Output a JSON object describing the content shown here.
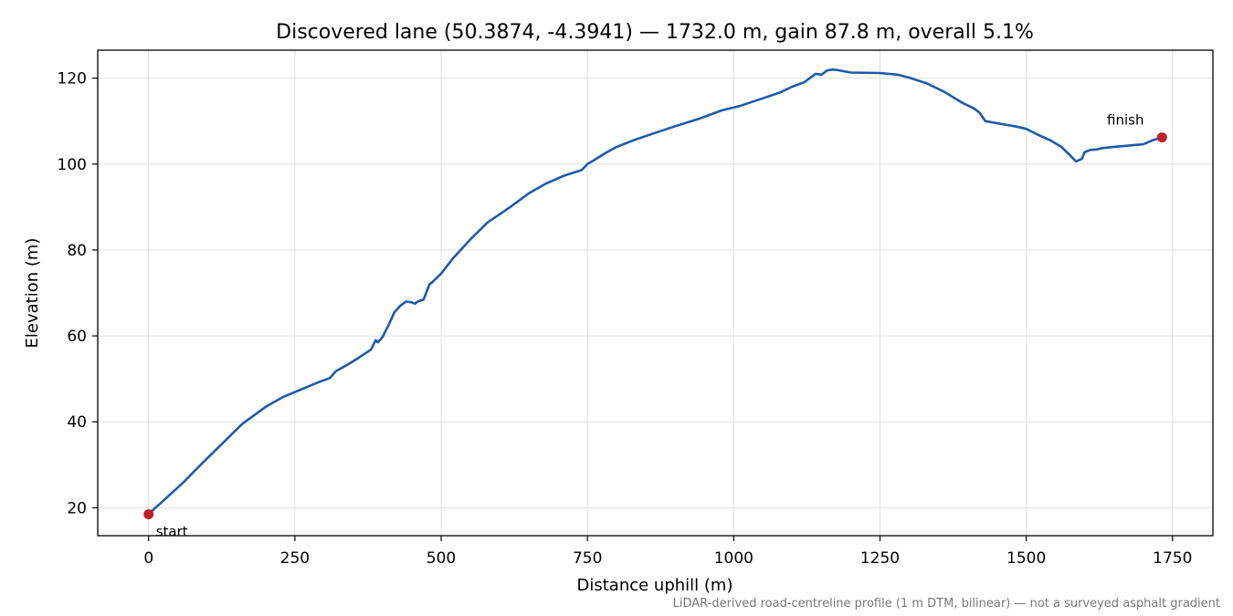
{
  "chart_data": {
    "type": "line",
    "title": "Discovered lane (50.3874, -4.3941) — 1732.0 m, gain 87.8 m, overall 5.1%",
    "xlabel": "Distance uphill (m)",
    "ylabel": "Elevation (m)",
    "footnote": "LiDAR-derived road-centreline profile (1 m DTM, bilinear) — not a surveyed asphalt gradient",
    "xlim": [
      -87,
      1819
    ],
    "ylim": [
      13.5,
      126.5
    ],
    "xticks": [
      0,
      250,
      500,
      750,
      1000,
      1250,
      1500,
      1750
    ],
    "yticks": [
      20,
      40,
      60,
      80,
      100,
      120
    ],
    "grid": true,
    "colors": {
      "line": "#1f5aa8",
      "marker": "#c41e2a",
      "grid": "#e0e0e0"
    },
    "series": [
      {
        "name": "",
        "x": [
          0,
          10,
          20,
          40,
          60,
          80,
          100,
          130,
          160,
          180,
          200,
          230,
          260,
          290,
          310,
          320,
          340,
          360,
          380,
          388,
          392,
          400,
          410,
          420,
          430,
          440,
          450,
          455,
          460,
          470,
          480,
          485,
          490,
          500,
          520,
          550,
          580,
          600,
          620,
          650,
          680,
          710,
          740,
          750,
          760,
          780,
          800,
          830,
          860,
          900,
          940,
          980,
          1010,
          1050,
          1080,
          1100,
          1120,
          1140,
          1150,
          1160,
          1170,
          1180,
          1200,
          1250,
          1280,
          1300,
          1330,
          1360,
          1390,
          1410,
          1420,
          1430,
          1450,
          1480,
          1500,
          1510,
          1520,
          1540,
          1560,
          1575,
          1585,
          1595,
          1600,
          1610,
          1620,
          1630,
          1650,
          1700,
          1715,
          1732
        ],
        "y": [
          18.5,
          19.8,
          21.0,
          23.5,
          26.0,
          28.8,
          31.5,
          35.5,
          39.5,
          41.5,
          43.5,
          45.8,
          47.5,
          49.2,
          50.2,
          51.8,
          53.3,
          55.0,
          56.8,
          59.0,
          58.5,
          59.8,
          62.5,
          65.5,
          67.0,
          68.0,
          67.8,
          67.5,
          68.0,
          68.5,
          72.0,
          72.5,
          73.2,
          74.5,
          78.0,
          82.5,
          86.5,
          88.3,
          90.2,
          93.2,
          95.5,
          97.3,
          98.6,
          100.0,
          100.8,
          102.5,
          104.0,
          105.6,
          107.0,
          108.8,
          110.5,
          112.5,
          113.5,
          115.3,
          116.7,
          118.0,
          119.0,
          121.0,
          120.8,
          121.8,
          122.0,
          121.8,
          121.3,
          121.2,
          120.8,
          120.1,
          118.8,
          116.8,
          114.3,
          113.0,
          112.0,
          110.0,
          109.5,
          108.8,
          108.2,
          107.5,
          106.8,
          105.6,
          104.0,
          102.0,
          100.6,
          101.2,
          102.8,
          103.3,
          103.4,
          103.7,
          104.0,
          104.6,
          105.5,
          106.2
        ]
      }
    ],
    "annotations": [
      {
        "text": "start",
        "x": 0,
        "y": 18.5
      },
      {
        "text": "finish",
        "x": 1732,
        "y": 106.2
      }
    ]
  }
}
